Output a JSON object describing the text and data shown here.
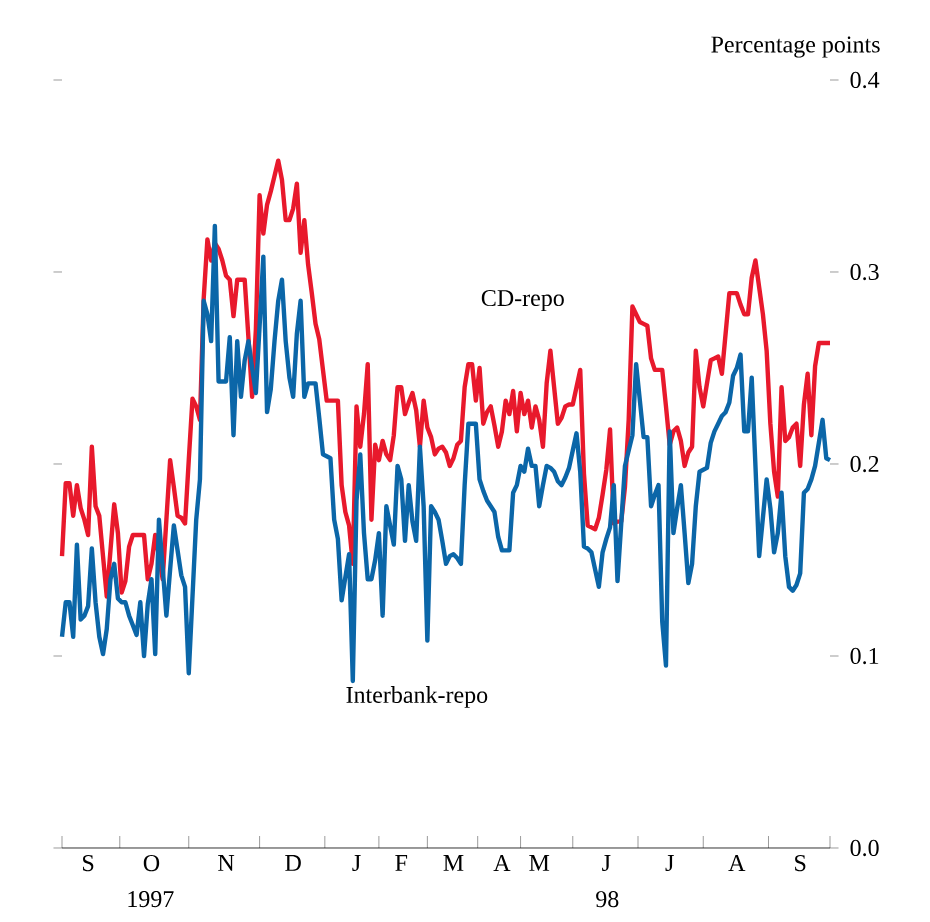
{
  "chart_data": {
    "type": "line",
    "ylabel": "Percentage points",
    "annotations": [
      "1997",
      "98"
    ],
    "categories": [
      null,
      null,
      null,
      null,
      null,
      null,
      null,
      "S",
      null,
      null,
      null,
      null,
      null,
      null,
      null,
      null,
      null,
      null,
      null,
      null,
      null,
      null,
      null,
      null,
      "O",
      null,
      null,
      null,
      null,
      null,
      null,
      null,
      null,
      null,
      null,
      null,
      null,
      null,
      null,
      null,
      null,
      null,
      null,
      null,
      "N",
      null,
      null,
      null,
      null,
      null,
      null,
      null,
      null,
      null,
      null,
      null,
      null,
      null,
      null,
      null,
      null,
      null,
      "D",
      null,
      null,
      null,
      null,
      null,
      null,
      null,
      null,
      null,
      null,
      null,
      null,
      null,
      null,
      null,
      null,
      "J",
      null,
      null,
      null,
      null,
      null,
      null,
      null,
      null,
      null,
      null,
      null,
      "F",
      null,
      null,
      null,
      null,
      null,
      null,
      null,
      null,
      null,
      null,
      null,
      null,
      null,
      "M",
      null,
      null,
      null,
      null,
      null,
      null,
      null,
      null,
      null,
      null,
      null,
      null,
      "A",
      null,
      null,
      null,
      null,
      null,
      null,
      null,
      null,
      null,
      "M",
      null,
      null,
      null,
      null,
      null,
      null,
      null,
      null,
      null,
      null,
      null,
      null,
      null,
      null,
      null,
      null,
      null,
      "J",
      null,
      null,
      null,
      null,
      null,
      null,
      null,
      null,
      null,
      null,
      null,
      null,
      null,
      null,
      null,
      null,
      "J",
      null,
      null,
      null,
      null,
      null,
      null,
      null,
      null,
      null,
      null,
      null,
      null,
      null,
      null,
      null,
      null,
      null,
      "A",
      null,
      null,
      null,
      null,
      null,
      null,
      null,
      null,
      null,
      null,
      null,
      null,
      null,
      null,
      null,
      null,
      "S",
      null,
      null,
      null,
      null,
      null,
      null,
      null,
      null
    ],
    "ylim": [
      0,
      0.4
    ],
    "yticks": [
      {
        "value": 0,
        "label": "0.0"
      },
      0.1,
      0.2,
      0.3,
      0.4
    ],
    "series": [
      {
        "name": "CD-repo",
        "color": "#e8192c",
        "values": [
          0.152,
          0.19,
          0.19,
          0.173,
          0.189,
          0.177,
          0.171,
          0.163,
          0.209,
          0.178,
          0.173,
          0.152,
          0.131,
          0.155,
          0.179,
          0.164,
          0.133,
          0.139,
          0.157,
          0.163,
          0.163,
          0.163,
          0.163,
          0.14,
          0.148,
          0.163,
          0.152,
          0.14,
          0.171,
          0.202,
          0.188,
          0.173,
          0.172,
          0.169,
          0.202,
          0.234,
          0.23,
          0.223,
          0.286,
          0.317,
          0.306,
          0.315,
          0.312,
          0.306,
          0.298,
          0.296,
          0.277,
          0.296,
          0.296,
          0.296,
          0.266,
          0.235,
          0.27,
          0.34,
          0.32,
          0.335,
          0.342,
          0.35,
          0.358,
          0.348,
          0.327,
          0.327,
          0.333,
          0.346,
          0.31,
          0.327,
          0.304,
          0.289,
          0.273,
          0.265,
          0.249,
          0.233,
          0.233,
          0.233,
          0.233,
          0.189,
          0.175,
          0.168,
          0.148,
          0.23,
          0.209,
          0.226,
          0.252,
          0.171,
          0.21,
          0.202,
          0.212,
          0.205,
          0.202,
          0.215,
          0.24,
          0.24,
          0.226,
          0.232,
          0.237,
          0.228,
          0.209,
          0.233,
          0.219,
          0.214,
          0.205,
          0.208,
          0.209,
          0.206,
          0.199,
          0.203,
          0.21,
          0.212,
          0.24,
          0.252,
          0.252,
          0.233,
          0.25,
          0.221,
          0.227,
          0.23,
          0.22,
          0.209,
          0.217,
          0.233,
          0.226,
          0.238,
          0.217,
          0.237,
          0.226,
          0.233,
          0.219,
          0.23,
          0.223,
          0.209,
          0.242,
          0.259,
          0.24,
          0.221,
          0.224,
          0.23,
          0.231,
          0.231,
          0.24,
          0.249,
          0.195,
          0.168,
          0.167,
          0.166,
          0.172,
          0.184,
          0.197,
          0.218,
          0.169,
          0.17,
          0.17,
          0.188,
          0.223,
          0.282,
          0.278,
          0.274,
          0.273,
          0.272,
          0.255,
          0.249,
          0.249,
          0.249,
          0.23,
          0.21,
          0.217,
          0.219,
          0.212,
          0.199,
          0.206,
          0.209,
          0.259,
          0.24,
          0.23,
          0.242,
          0.254,
          0.255,
          0.256,
          0.247,
          0.268,
          0.289,
          0.289,
          0.289,
          0.283,
          0.278,
          0.278,
          0.297,
          0.306,
          0.292,
          0.278,
          0.259,
          0.221,
          0.196,
          0.183,
          0.24,
          0.212,
          0.214,
          0.219,
          0.221,
          0.199,
          0.231,
          0.247,
          0.215,
          0.251,
          0.263,
          0.263,
          0.263,
          0.263
        ]
      },
      {
        "name": "Interbank-repo",
        "color": "#0b66a8",
        "values": [
          0.11,
          0.128,
          0.128,
          0.11,
          0.158,
          0.119,
          0.121,
          0.126,
          0.156,
          0.128,
          0.11,
          0.101,
          0.114,
          0.14,
          0.148,
          0.13,
          0.128,
          0.128,
          0.121,
          0.116,
          0.111,
          0.128,
          0.1,
          0.127,
          0.14,
          0.101,
          0.171,
          0.146,
          0.121,
          0.145,
          0.168,
          0.155,
          0.142,
          0.136,
          0.091,
          0.131,
          0.171,
          0.192,
          0.285,
          0.278,
          0.264,
          0.324,
          0.243,
          0.243,
          0.243,
          0.266,
          0.215,
          0.264,
          0.235,
          0.254,
          0.264,
          0.25,
          0.237,
          0.272,
          0.308,
          0.227,
          0.239,
          0.264,
          0.285,
          0.296,
          0.264,
          0.245,
          0.235,
          0.268,
          0.285,
          0.235,
          0.242,
          0.242,
          0.242,
          0.224,
          0.205,
          0.204,
          0.203,
          0.171,
          0.161,
          0.129,
          0.141,
          0.153,
          0.087,
          0.181,
          0.205,
          0.164,
          0.14,
          0.14,
          0.15,
          0.164,
          0.121,
          0.178,
          0.168,
          0.158,
          0.199,
          0.192,
          0.16,
          0.189,
          0.17,
          0.16,
          0.209,
          0.178,
          0.108,
          0.178,
          0.175,
          0.171,
          0.16,
          0.148,
          0.152,
          0.153,
          0.151,
          0.148,
          0.189,
          0.221,
          0.221,
          0.221,
          0.192,
          0.186,
          0.181,
          0.178,
          0.175,
          0.162,
          0.155,
          0.155,
          0.155,
          0.185,
          0.189,
          0.199,
          0.196,
          0.208,
          0.199,
          0.199,
          0.178,
          0.189,
          0.199,
          0.198,
          0.196,
          0.191,
          0.189,
          0.193,
          0.198,
          0.207,
          0.216,
          0.196,
          0.157,
          0.156,
          0.154,
          0.145,
          0.136,
          0.154,
          0.161,
          0.167,
          0.189,
          0.139,
          0.169,
          0.199,
          0.207,
          0.215,
          0.252,
          0.233,
          0.214,
          0.214,
          0.178,
          0.184,
          0.189,
          0.118,
          0.095,
          0.217,
          0.164,
          0.177,
          0.189,
          0.164,
          0.138,
          0.148,
          0.178,
          0.196,
          0.197,
          0.198,
          0.211,
          0.217,
          0.221,
          0.225,
          0.227,
          0.232,
          0.246,
          0.25,
          0.257,
          0.217,
          0.217,
          0.245,
          0.199,
          0.152,
          0.172,
          0.192,
          0.177,
          0.154,
          0.164,
          0.185,
          0.152,
          0.136,
          0.134,
          0.137,
          0.143,
          0.185,
          0.187,
          0.192,
          0.199,
          0.211,
          0.223,
          0.203,
          0.202
        ]
      }
    ]
  }
}
